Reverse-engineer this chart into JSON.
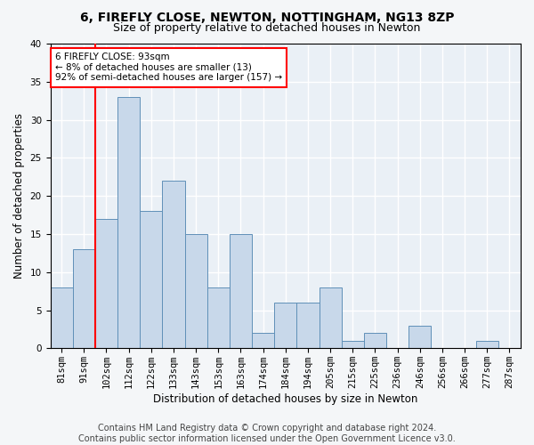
{
  "title": "6, FIREFLY CLOSE, NEWTON, NOTTINGHAM, NG13 8ZP",
  "subtitle": "Size of property relative to detached houses in Newton",
  "xlabel": "Distribution of detached houses by size in Newton",
  "ylabel": "Number of detached properties",
  "bar_color": "#c8d8ea",
  "bar_edge_color": "#6090b8",
  "categories": [
    "81sqm",
    "91sqm",
    "102sqm",
    "112sqm",
    "122sqm",
    "133sqm",
    "143sqm",
    "153sqm",
    "163sqm",
    "174sqm",
    "184sqm",
    "194sqm",
    "205sqm",
    "215sqm",
    "225sqm",
    "236sqm",
    "246sqm",
    "256sqm",
    "266sqm",
    "277sqm",
    "287sqm"
  ],
  "values": [
    8,
    13,
    17,
    33,
    18,
    22,
    15,
    8,
    15,
    2,
    6,
    6,
    8,
    1,
    2,
    0,
    3,
    0,
    0,
    1,
    0
  ],
  "ylim": [
    0,
    40
  ],
  "yticks": [
    0,
    5,
    10,
    15,
    20,
    25,
    30,
    35,
    40
  ],
  "annotation_text_line1": "6 FIREFLY CLOSE: 93sqm",
  "annotation_text_line2": "← 8% of detached houses are smaller (13)",
  "annotation_text_line3": "92% of semi-detached houses are larger (157) →",
  "annotation_box_color": "white",
  "annotation_box_edge_color": "red",
  "vline_color": "red",
  "vline_x": 1.5,
  "footer_line1": "Contains HM Land Registry data © Crown copyright and database right 2024.",
  "footer_line2": "Contains public sector information licensed under the Open Government Licence v3.0.",
  "plot_bg_color": "#eaf0f6",
  "fig_bg_color": "#f4f6f8",
  "grid_color": "white",
  "title_fontsize": 10,
  "subtitle_fontsize": 9,
  "axis_label_fontsize": 8.5,
  "tick_fontsize": 7.5,
  "annotation_fontsize": 7.5,
  "footer_fontsize": 7
}
